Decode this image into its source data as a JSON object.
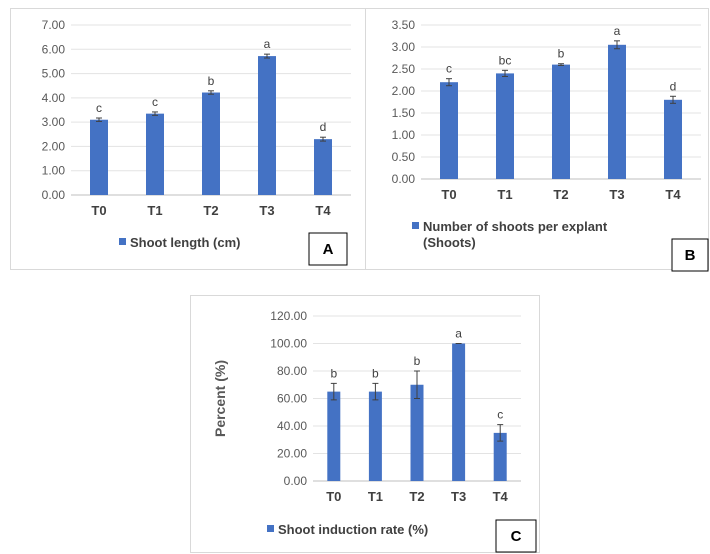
{
  "colors": {
    "bar": "#4472C4",
    "grid": "#e3e3e3",
    "text": "#404040"
  },
  "chart_data": [
    {
      "type": "bar",
      "panel_tag": "A",
      "categories": [
        "T0",
        "T1",
        "T2",
        "T3",
        "T4"
      ],
      "series": [
        {
          "name": "Shoot length (cm)",
          "values": [
            3.1,
            3.35,
            4.22,
            5.72,
            2.3
          ],
          "errors": [
            0.07,
            0.07,
            0.07,
            0.08,
            0.08
          ]
        }
      ],
      "significance": [
        "c",
        "c",
        "b",
        "a",
        "d"
      ],
      "ylim": [
        0,
        7
      ],
      "yticks": [
        "0.00",
        "1.00",
        "2.00",
        "3.00",
        "4.00",
        "5.00",
        "6.00",
        "7.00"
      ],
      "ylabel": "",
      "legend_lines": [
        "Shoot length (cm)"
      ],
      "legend": "bottom"
    },
    {
      "type": "bar",
      "panel_tag": "B",
      "categories": [
        "T0",
        "T1",
        "T2",
        "T3",
        "T4"
      ],
      "series": [
        {
          "name": "Number of shoots per explant (Shoots)",
          "values": [
            2.2,
            2.4,
            2.6,
            3.05,
            1.8
          ],
          "errors": [
            0.08,
            0.07,
            0.02,
            0.09,
            0.08
          ]
        }
      ],
      "significance": [
        "c",
        "bc",
        "b",
        "a",
        "d"
      ],
      "ylim": [
        0,
        3.5
      ],
      "yticks": [
        "0.00",
        "0.50",
        "1.00",
        "1.50",
        "2.00",
        "2.50",
        "3.00",
        "3.50"
      ],
      "ylabel": "",
      "legend_lines": [
        "Number of shoots per explant",
        "(Shoots)"
      ],
      "legend": "bottom"
    },
    {
      "type": "bar",
      "panel_tag": "C",
      "categories": [
        "T0",
        "T1",
        "T2",
        "T3",
        "T4"
      ],
      "series": [
        {
          "name": "Shoot induction rate (%)",
          "values": [
            65,
            65,
            70,
            100,
            35
          ],
          "errors": [
            6,
            6,
            10,
            0,
            6
          ]
        }
      ],
      "significance": [
        "b",
        "b",
        "b",
        "a",
        "c"
      ],
      "ylim": [
        0,
        120
      ],
      "yticks": [
        "0.00",
        "20.00",
        "40.00",
        "60.00",
        "80.00",
        "100.00",
        "120.00"
      ],
      "ylabel": "Percent (%)",
      "legend_lines": [
        "Shoot induction rate (%)"
      ],
      "legend": "bottom"
    }
  ]
}
